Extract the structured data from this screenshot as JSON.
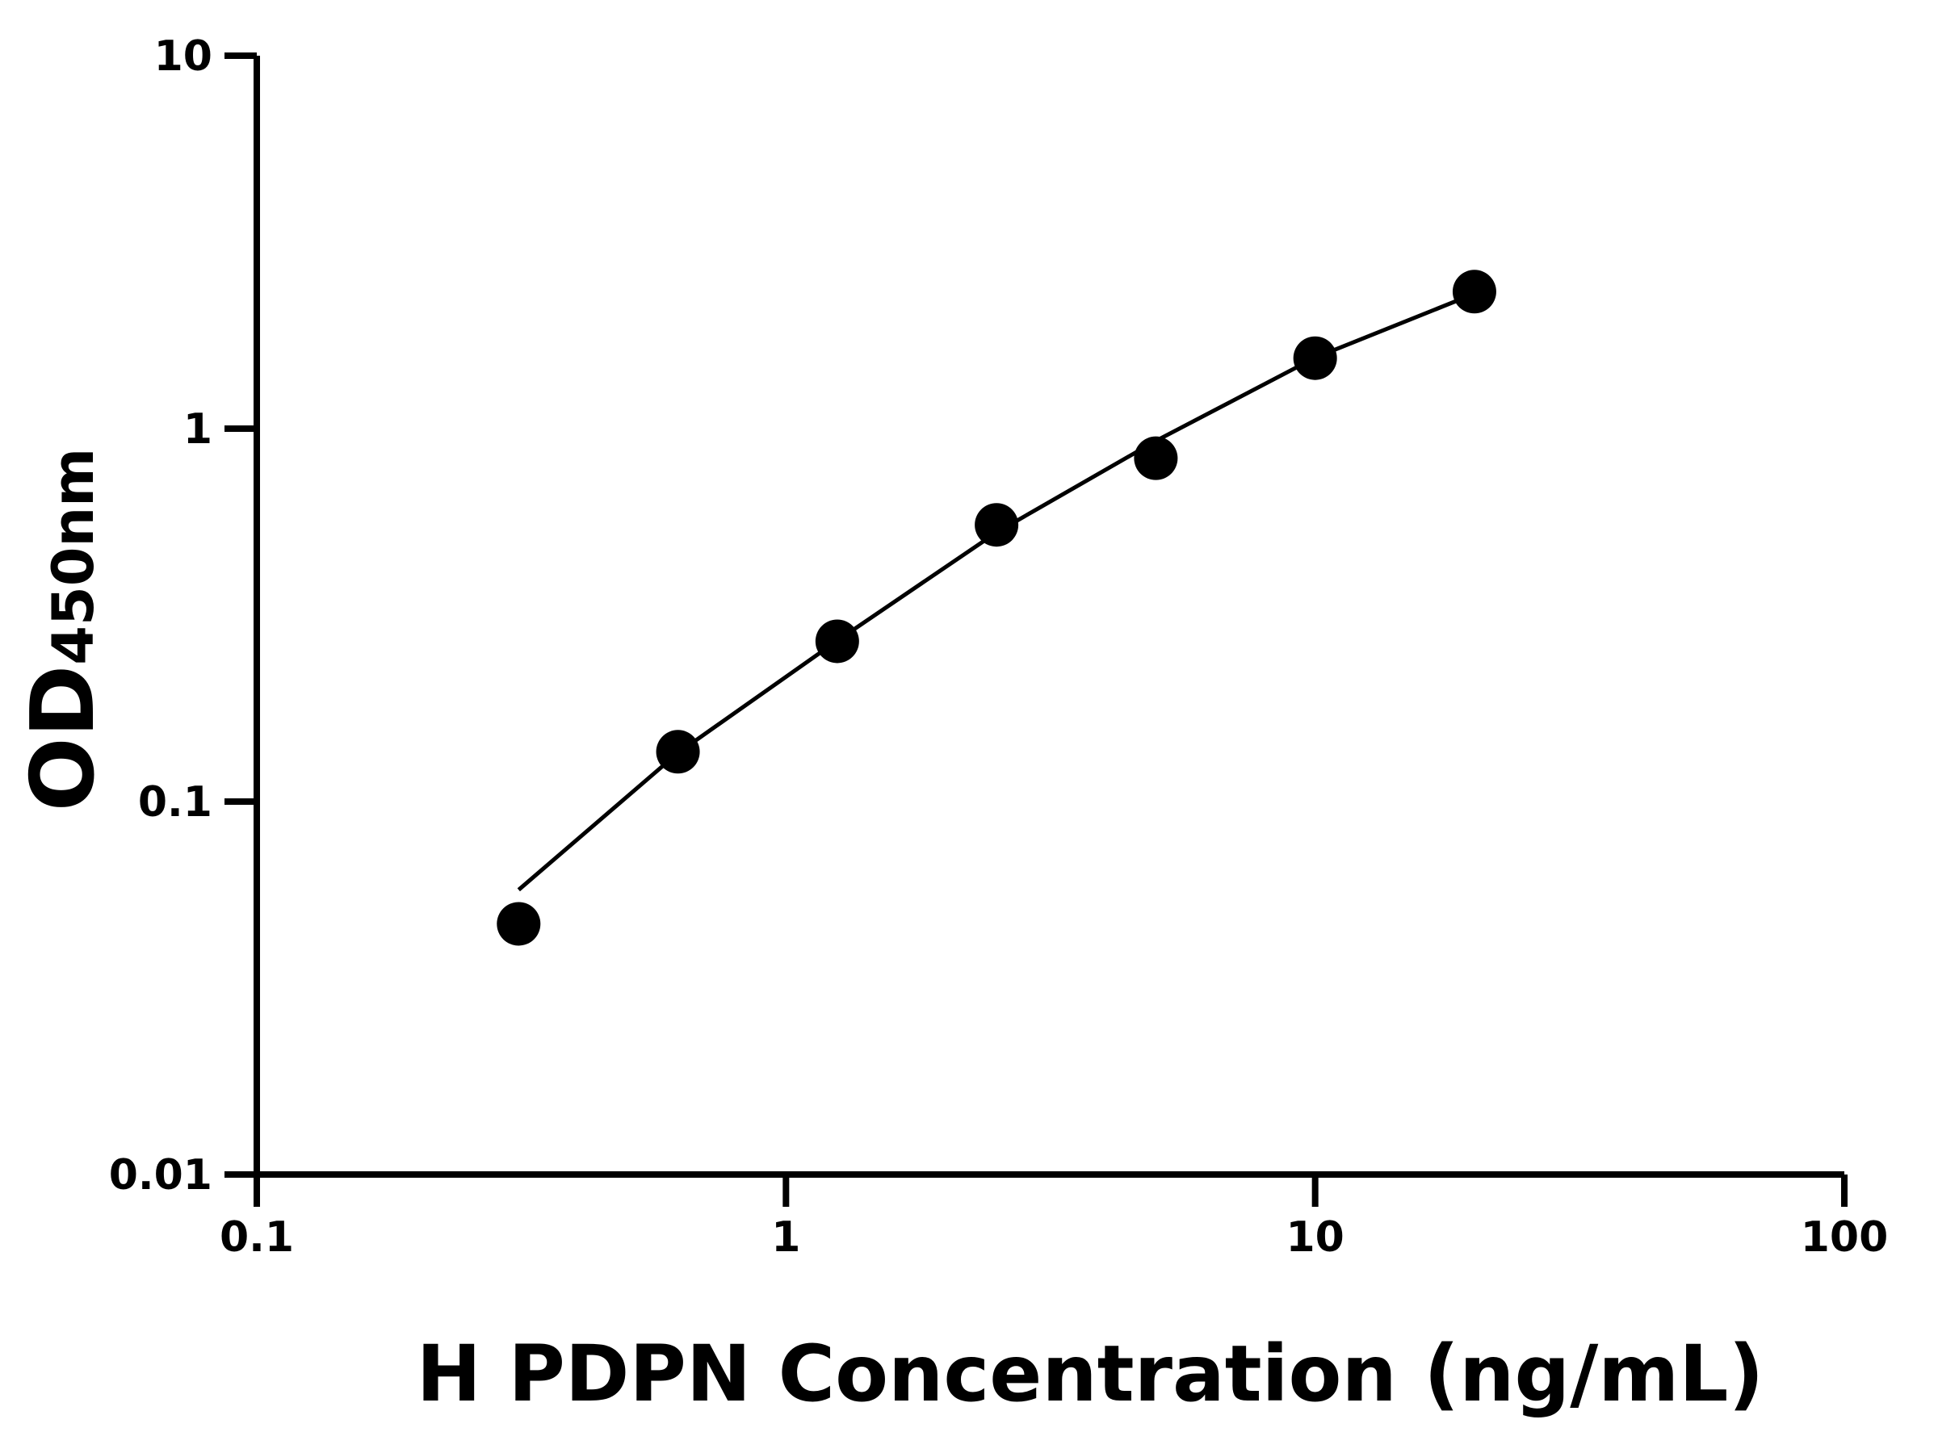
{
  "chart_data": {
    "type": "scatter",
    "x_label": "H PDPN Concentration (ng/mL)",
    "y_label": {
      "main": "OD",
      "sub": "450nm"
    },
    "x": [
      0.3125,
      0.625,
      1.25,
      2.5,
      5,
      10,
      20
    ],
    "series": [
      {
        "type": "scatter",
        "color": "#000000",
        "values": [
          0.047,
          0.136,
          0.269,
          0.552,
          0.833,
          1.545,
          2.33
        ]
      },
      {
        "type": "line",
        "color": "#000000",
        "values": [
          0.058,
          0.135,
          0.27,
          0.527,
          0.927,
          1.55,
          2.3
        ]
      }
    ],
    "xscale": "log",
    "yscale": "log",
    "xlim": [
      0.1,
      100
    ],
    "xticks": [
      0.1,
      1,
      10,
      100
    ],
    "ylim": [
      0.01,
      10
    ],
    "yticks": [
      0.01,
      0.1,
      1,
      10
    ],
    "grid": false
  }
}
